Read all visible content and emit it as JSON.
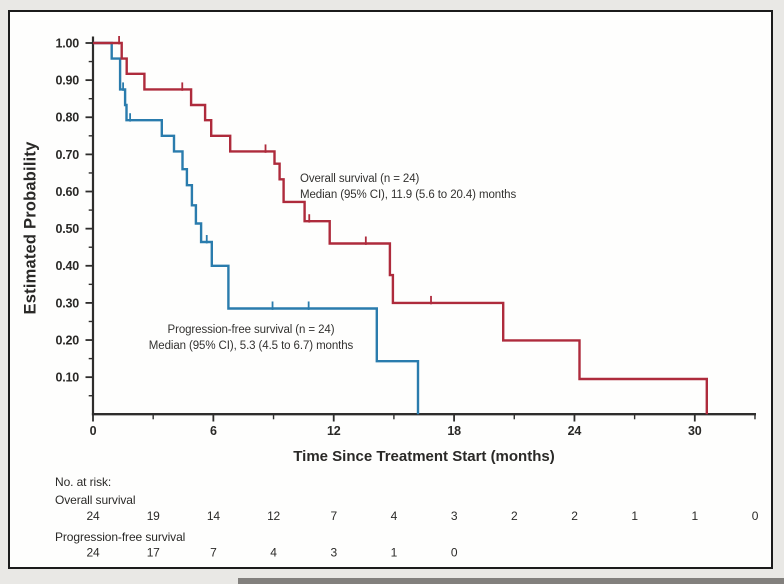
{
  "chart_data": {
    "type": "line",
    "subtype": "kaplan-meier-step",
    "title": "",
    "xlabel": "Time Since Treatment Start (months)",
    "ylabel": "Estimated Probability",
    "xlim": [
      0,
      33.2
    ],
    "ylim": [
      0,
      1.0
    ],
    "grid": "off",
    "legend_position": "inline-annotations",
    "axes": {
      "x": {
        "label": "Time Since Treatment Start (months)",
        "major_ticks": [
          {
            "t": 0,
            "label": "0"
          },
          {
            "t": 6,
            "label": "6"
          },
          {
            "t": 12,
            "label": "12"
          },
          {
            "t": 18,
            "label": "18"
          },
          {
            "t": 24,
            "label": "24"
          },
          {
            "t": 30,
            "label": "30"
          }
        ],
        "minor_ticks": [
          3,
          9,
          15,
          21,
          27,
          33
        ]
      },
      "y": {
        "label": "Estimated Probability",
        "major_ticks": [
          {
            "p": 1.0,
            "label": "1.00"
          },
          {
            "p": 0.9,
            "label": "0.90"
          },
          {
            "p": 0.8,
            "label": "0.80"
          },
          {
            "p": 0.7,
            "label": "0.70"
          },
          {
            "p": 0.6,
            "label": "0.60"
          },
          {
            "p": 0.5,
            "label": "0.50"
          },
          {
            "p": 0.4,
            "label": "0.40"
          },
          {
            "p": 0.3,
            "label": "0.30"
          },
          {
            "p": 0.2,
            "label": "0.20"
          },
          {
            "p": 0.1,
            "label": "0.10"
          }
        ],
        "minor_ticks": [
          0.95,
          0.85,
          0.75,
          0.65,
          0.55,
          0.45,
          0.35,
          0.25,
          0.15,
          0.05
        ]
      }
    },
    "series": [
      {
        "name": "Overall survival",
        "n": 24,
        "median_months": 11.9,
        "ci_95": "5.6 to 20.4",
        "annotation_lines": [
          "Overall survival (n = 24)",
          "Median (95% CI), 11.9 (5.6 to 20.4) months"
        ],
        "color": "#AE2B3C",
        "steps": [
          [
            0,
            1.0
          ],
          [
            1.43,
            0.958
          ],
          [
            1.68,
            0.917
          ],
          [
            2.56,
            0.875
          ],
          [
            4.89,
            0.833
          ],
          [
            5.59,
            0.792
          ],
          [
            5.89,
            0.75
          ],
          [
            6.84,
            0.708
          ],
          [
            9.05,
            0.675
          ],
          [
            9.3,
            0.633
          ],
          [
            9.5,
            0.572
          ],
          [
            10.55,
            0.52
          ],
          [
            11.8,
            0.46
          ],
          [
            14.8,
            0.375
          ],
          [
            14.95,
            0.3
          ],
          [
            20.45,
            0.199
          ],
          [
            24.25,
            0.095
          ],
          [
            30.6,
            0.0
          ]
        ],
        "censor_marks": [
          [
            1.3,
            1.0
          ],
          [
            4.45,
            0.875
          ],
          [
            8.6,
            0.708
          ],
          [
            10.78,
            0.52
          ],
          [
            13.6,
            0.46
          ],
          [
            16.85,
            0.3
          ]
        ]
      },
      {
        "name": "Progression-free survival",
        "n": 24,
        "median_months": 5.3,
        "ci_95": "4.5 to 6.7",
        "annotation_lines": [
          "Progression-free survival (n = 24)",
          "Median (95% CI), 5.3 (4.5 to 6.7) months"
        ],
        "color": "#2A7CAD",
        "steps": [
          [
            0,
            1.0
          ],
          [
            0.93,
            0.958
          ],
          [
            1.35,
            0.875
          ],
          [
            1.6,
            0.833
          ],
          [
            1.67,
            0.792
          ],
          [
            3.43,
            0.75
          ],
          [
            4.04,
            0.708
          ],
          [
            4.46,
            0.66
          ],
          [
            4.68,
            0.617
          ],
          [
            4.93,
            0.563
          ],
          [
            5.13,
            0.514
          ],
          [
            5.39,
            0.464
          ],
          [
            5.92,
            0.4
          ],
          [
            6.75,
            0.285
          ],
          [
            14.15,
            0.143
          ],
          [
            16.2,
            0.0
          ]
        ],
        "censor_marks": [
          [
            1.5,
            0.875
          ],
          [
            1.85,
            0.792
          ],
          [
            5.67,
            0.464
          ],
          [
            8.95,
            0.285
          ],
          [
            10.75,
            0.285
          ]
        ]
      }
    ],
    "risk_table": {
      "header": "No. at risk:",
      "rows": [
        {
          "label": "Overall survival",
          "times": [
            0,
            3,
            6,
            9,
            12,
            15,
            18,
            21,
            24,
            27,
            30,
            33
          ],
          "counts": [
            24,
            19,
            14,
            12,
            7,
            4,
            3,
            2,
            2,
            1,
            1,
            0
          ]
        },
        {
          "label": "Progression-free survival",
          "times": [
            0,
            3,
            6,
            9,
            12,
            15,
            18
          ],
          "counts": [
            24,
            17,
            7,
            4,
            3,
            1,
            0
          ]
        }
      ]
    },
    "palette": {
      "overall_survival": "#AE2B3C",
      "progression_free_survival": "#2A7CAD",
      "axis": "#2E2D2C",
      "text": "#2A2927",
      "figure_border": "#1B1B1B",
      "panel_background": "#FEFEFD",
      "outer_background": "#E9E8E5",
      "window_edge_bar": "#5F5E5A"
    }
  }
}
